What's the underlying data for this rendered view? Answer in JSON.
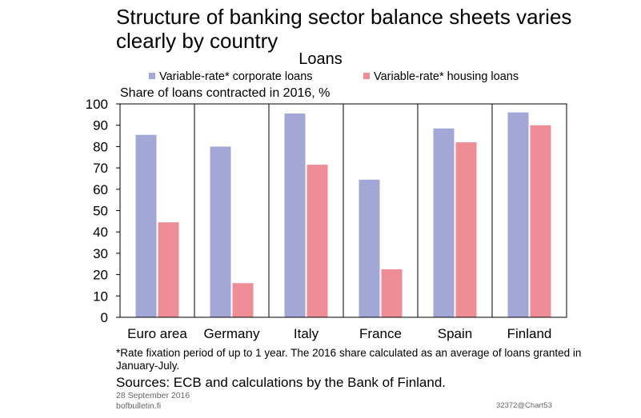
{
  "title": "Structure of banking sector balance sheets varies clearly by country",
  "footnote": "*Rate fixation period of up to 1 year. The 2016 share calculated as an average of loans granted in January-July.",
  "sources": "Sources: ECB and calculations by the Bank of Finland.",
  "date": "28 September 2016",
  "site": "bofbulletin.fi",
  "chart_id": "32372@Chart53",
  "colors": {
    "corporate": "#a3a7d6",
    "housing": "#ee8d96"
  },
  "chart_data": {
    "type": "bar",
    "title": "Loans",
    "ylabel": "Share of loans contracted in 2016, %",
    "xlabel": "",
    "categories": [
      "Euro area",
      "Germany",
      "Italy",
      "France",
      "Spain",
      "Finland"
    ],
    "series": [
      {
        "name": "Variable-rate* corporate loans",
        "values": [
          85.5,
          80,
          95.5,
          64.5,
          88.5,
          96
        ]
      },
      {
        "name": "Variable-rate* housing loans",
        "values": [
          44.5,
          16,
          71.5,
          22.5,
          82,
          90
        ]
      }
    ],
    "ylim": [
      0,
      100
    ],
    "yticks": [
      0,
      10,
      20,
      30,
      40,
      50,
      60,
      70,
      80,
      90,
      100
    ],
    "grid": false,
    "legend": "top"
  }
}
